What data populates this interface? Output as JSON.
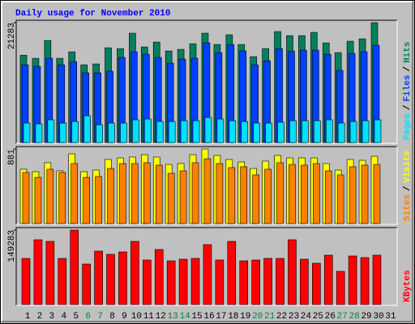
{
  "chart_data": [
    {
      "type": "bar",
      "title": "Daily usage for November 2010",
      "ylim": [
        0,
        21283
      ],
      "yticks": [
        21283
      ],
      "legend_separator": "/",
      "series": [
        {
          "name": "Pages",
          "color": "#00e0ff",
          "values": [
            3450,
            3310,
            4030,
            3450,
            3740,
            4750,
            3160,
            3450,
            3450,
            4030,
            4170,
            3740,
            3740,
            3880,
            3880,
            4460,
            4170,
            3880,
            3740,
            3450,
            3450,
            3600,
            3880,
            3880,
            3880,
            4030,
            3450,
            3740,
            3880,
            4030,
            null
          ]
        },
        {
          "name": "Files",
          "color": "#0040ff",
          "values": [
            13800,
            13520,
            14960,
            13800,
            14380,
            12370,
            12370,
            12650,
            15100,
            16110,
            15670,
            15100,
            14090,
            14810,
            14960,
            17690,
            15960,
            17400,
            16250,
            13800,
            14520,
            16680,
            16250,
            16390,
            16390,
            15670,
            12800,
            15820,
            16110,
            17260,
            null
          ]
        },
        {
          "name": "Hits",
          "color": "#00805c",
          "values": [
            15500,
            14950,
            18120,
            14950,
            16100,
            13800,
            13950,
            16820,
            16680,
            19410,
            16970,
            17830,
            16250,
            16540,
            17540,
            19410,
            17400,
            19130,
            17400,
            15240,
            16680,
            19700,
            18980,
            18980,
            19560,
            17690,
            15960,
            17980,
            18410,
            21283,
            null
          ]
        }
      ]
    },
    {
      "type": "bar",
      "ylim": [
        0,
        881
      ],
      "yticks": [
        881
      ],
      "legend_separator": "/",
      "series": [
        {
          "name": "Sites",
          "color": "#ff8000",
          "values": [
            604,
            546,
            642,
            604,
            709,
            546,
            556,
            651,
            709,
            709,
            719,
            690,
            594,
            623,
            719,
            766,
            709,
            661,
            671,
            575,
            642,
            719,
            699,
            690,
            709,
            623,
            575,
            671,
            690,
            699,
            null
          ]
        },
        {
          "name": "Visits",
          "color": "#ffff00",
          "values": [
            642,
            613,
            719,
            623,
            824,
            613,
            632,
            757,
            776,
            786,
            814,
            786,
            699,
            709,
            814,
            881,
            805,
            757,
            728,
            651,
            738,
            805,
            776,
            776,
            776,
            709,
            632,
            757,
            747,
            795,
            null
          ]
        }
      ]
    },
    {
      "type": "bar",
      "ylim": [
        0,
        149283
      ],
      "yticks": [
        149283
      ],
      "categories": [
        "1",
        "2",
        "3",
        "4",
        "5",
        "6",
        "7",
        "8",
        "9",
        "10",
        "11",
        "12",
        "13",
        "14",
        "15",
        "16",
        "17",
        "18",
        "19",
        "20",
        "21",
        "22",
        "23",
        "24",
        "25",
        "26",
        "27",
        "28",
        "29",
        "30",
        "31"
      ],
      "category_colors": [
        "#000000",
        "#000000",
        "#000000",
        "#000000",
        "#000000",
        "#008040",
        "#008040",
        "#000000",
        "#000000",
        "#000000",
        "#000000",
        "#000000",
        "#008040",
        "#008040",
        "#000000",
        "#000000",
        "#000000",
        "#000000",
        "#000000",
        "#008040",
        "#008040",
        "#000000",
        "#000000",
        "#000000",
        "#000000",
        "#000000",
        "#008040",
        "#008040",
        "#000000",
        "#000000",
        "#000000"
      ],
      "series": [
        {
          "name": "KBytes",
          "color": "#ff0000",
          "values": [
            92490,
            129810,
            126560,
            92490,
            149283,
            81130,
            107090,
            100600,
            105470,
            126560,
            89240,
            110340,
            87620,
            90870,
            92490,
            120070,
            89240,
            126560,
            87620,
            89240,
            92490,
            92490,
            129810,
            90870,
            82750,
            98980,
            66530,
            97360,
            94110,
            98980,
            null
          ]
        }
      ]
    }
  ]
}
